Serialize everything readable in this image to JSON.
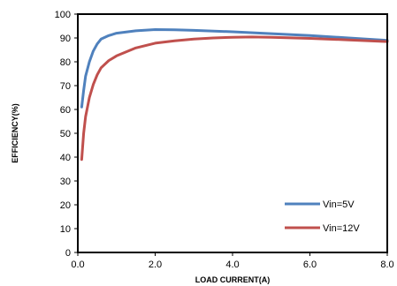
{
  "chart_data": {
    "type": "line",
    "title": "",
    "xlabel": "LOAD CURRENT(A)",
    "ylabel": "EFFICIENCY(%)",
    "xlim": [
      0,
      8
    ],
    "ylim": [
      0,
      100
    ],
    "x_ticks": [
      "0.0",
      "2.0",
      "4.0",
      "6.0",
      "8.0"
    ],
    "y_ticks": [
      "0",
      "10",
      "20",
      "30",
      "40",
      "50",
      "60",
      "70",
      "80",
      "90",
      "100"
    ],
    "grid": false,
    "legend_position": "bottom-right",
    "series": [
      {
        "name": "Vin=5V",
        "color": "#4f81bd",
        "x": [
          0.1,
          0.15,
          0.2,
          0.3,
          0.4,
          0.5,
          0.6,
          0.8,
          1.0,
          1.5,
          2.0,
          2.5,
          3.0,
          4.0,
          5.0,
          6.0,
          7.0,
          8.0
        ],
        "y": [
          61,
          68,
          74,
          80,
          84.5,
          87.5,
          89.5,
          91,
          92,
          93,
          93.5,
          93.4,
          93.2,
          92.6,
          91.8,
          91,
          90,
          89
        ]
      },
      {
        "name": "Vin=12V",
        "color": "#c0504d",
        "x": [
          0.1,
          0.15,
          0.2,
          0.3,
          0.4,
          0.5,
          0.6,
          0.8,
          1.0,
          1.5,
          2.0,
          2.5,
          3.0,
          3.5,
          4.0,
          4.5,
          5.0,
          6.0,
          7.0,
          8.0
        ],
        "y": [
          39,
          50,
          57,
          65,
          70.5,
          74.5,
          77.5,
          80.5,
          82.5,
          85.8,
          87.8,
          88.8,
          89.5,
          90,
          90.3,
          90.4,
          90.3,
          89.8,
          89.2,
          88.5
        ]
      }
    ]
  }
}
